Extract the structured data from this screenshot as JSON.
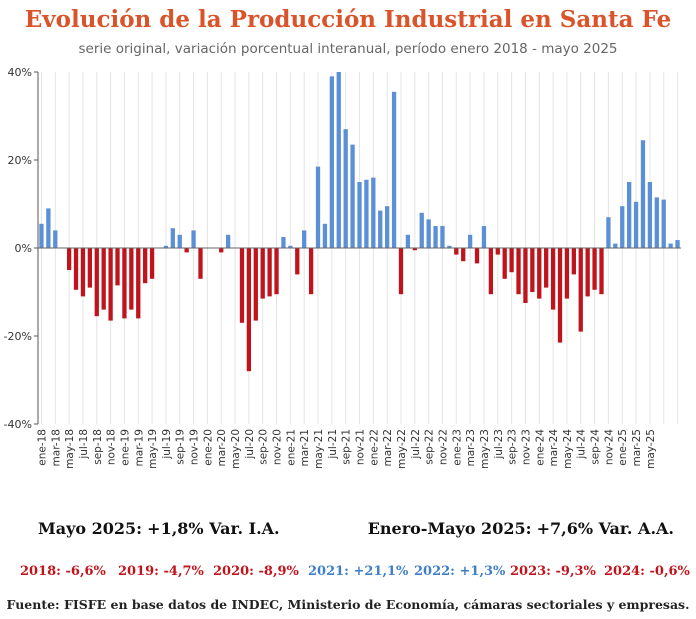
{
  "chart_data": {
    "type": "bar",
    "title": "Evolución de la Producción Industrial en Santa Fe",
    "subtitle": "serie original, variación porcentual interanual, período enero 2018 - mayo 2025",
    "xlabel": "",
    "ylabel": "",
    "ylim": [
      -40,
      40
    ],
    "yticks": [
      -40,
      -20,
      0,
      20,
      40
    ],
    "ytick_labels": [
      "-40%",
      "-20%",
      "0%",
      "20%",
      "40%"
    ],
    "grid": "vertical",
    "colors": {
      "positive": "#5b8fd6",
      "negative": "#c0141c"
    },
    "x_tick_labels": [
      "ene-18",
      "mar-18",
      "may-18",
      "jul-18",
      "sep-18",
      "nov-18",
      "ene-19",
      "mar-19",
      "may-19",
      "jul-19",
      "sep-19",
      "nov-19",
      "ene-20",
      "mar-20",
      "may-20",
      "jul-20",
      "sep-20",
      "nov-20",
      "ene-21",
      "mar-21",
      "may-21",
      "jul-21",
      "sep-21",
      "nov-21",
      "ene-22",
      "mar-22",
      "may-22",
      "jul-22",
      "sep-22",
      "nov-22",
      "ene-23",
      "mar-23",
      "may-23",
      "jul-23",
      "sep-23",
      "nov-23",
      "ene-24",
      "mar-24",
      "may-24",
      "jul-24",
      "sep-24",
      "nov-24",
      "ene-25",
      "mar-25",
      "may-25"
    ],
    "values": [
      5.5,
      9.0,
      4.0,
      0.0,
      -5.0,
      -9.5,
      -11.0,
      -9.0,
      -15.5,
      -14.0,
      -16.5,
      -8.5,
      -16.0,
      -14.0,
      -16.0,
      -8.0,
      -7.0,
      0.0,
      0.5,
      4.5,
      3.0,
      -1.0,
      4.0,
      -7.0,
      0.0,
      0.0,
      -1.0,
      3.0,
      0.0,
      -17.0,
      -28.0,
      -16.5,
      -11.5,
      -11.0,
      -10.5,
      2.5,
      0.5,
      -6.0,
      4.0,
      -10.5,
      18.5,
      5.5,
      39.0,
      40.0,
      27.0,
      23.5,
      15.0,
      15.5,
      16.0,
      8.5,
      9.5,
      35.5,
      -10.5,
      3.0,
      -0.5,
      8.0,
      6.5,
      5.0,
      5.0,
      0.5,
      -1.5,
      -3.0,
      3.0,
      -3.5,
      5.0,
      -10.5,
      -1.5,
      -7.0,
      -5.5,
      -10.5,
      -12.5,
      -10.0,
      -11.5,
      -9.0,
      -14.0,
      -21.5,
      -11.5,
      -6.0,
      -19.0,
      -11.0,
      -9.5,
      -10.5,
      7.0,
      1.0,
      9.5,
      15.0,
      10.5,
      24.5,
      15.0,
      11.5,
      11.0,
      1.0,
      1.8
    ]
  },
  "summary": {
    "left_label": "Mayo 2025:",
    "left_value": "+1,8% Var. I.A.",
    "right_label": "Enero-Mayo 2025:",
    "right_value": "+7,6% Var. A.A."
  },
  "annual": [
    {
      "label": "2018: -6,6%",
      "color": "#c0141c"
    },
    {
      "label": "2019: -4,7%",
      "color": "#c0141c"
    },
    {
      "label": "2020: -8,9%",
      "color": "#c0141c"
    },
    {
      "label": "2021: +21,1%",
      "color": "#3f7fc8"
    },
    {
      "label": "2022: +1,3%",
      "color": "#3f7fc8"
    },
    {
      "label": "2023: -9,3%",
      "color": "#c0141c"
    },
    {
      "label": "2024: -0,6%",
      "color": "#c0141c"
    }
  ],
  "source": "Fuente: FISFE en base datos de INDEC, Ministerio de Economía, cámaras sectoriales y empresas."
}
